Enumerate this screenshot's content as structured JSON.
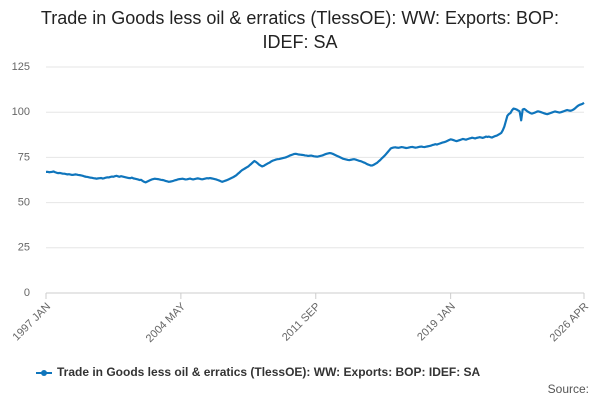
{
  "chart_data": {
    "type": "line",
    "title": "Trade in Goods less oil & erratics (TlessOE): WW: Exports: BOP: IDEF: SA",
    "source": "Source:",
    "categories": [
      "1997 JAN",
      null,
      null,
      null,
      null,
      null,
      null,
      null,
      null,
      null,
      null,
      null,
      null,
      null,
      null,
      null,
      null,
      null,
      null,
      null,
      null,
      null,
      null,
      null,
      null,
      null,
      null,
      null,
      null,
      null,
      null,
      null,
      null,
      null,
      null,
      null,
      null,
      null,
      null,
      null,
      null,
      null,
      null,
      null,
      null,
      null,
      null,
      null,
      null,
      null,
      null,
      null,
      null,
      null,
      null,
      null,
      null,
      null,
      null,
      null,
      null,
      null,
      null,
      null,
      null,
      null,
      null,
      null,
      null,
      null,
      null,
      null,
      null,
      null,
      null,
      null,
      null,
      null,
      null,
      null,
      null,
      null,
      null,
      null,
      null,
      null,
      null,
      null,
      "2004 MAY",
      null,
      null,
      null,
      null,
      null,
      null,
      null,
      null,
      null,
      null,
      null,
      null,
      null,
      null,
      null,
      null,
      null,
      null,
      null,
      null,
      null,
      null,
      null,
      null,
      null,
      null,
      null,
      null,
      null,
      null,
      null,
      null,
      null,
      null,
      null,
      null,
      null,
      null,
      null,
      null,
      null,
      null,
      null,
      null,
      null,
      null,
      null,
      null,
      null,
      null,
      null,
      null,
      null,
      null,
      null,
      null,
      null,
      null,
      null,
      null,
      null,
      null,
      null,
      null,
      null,
      null,
      null,
      null,
      null,
      null,
      null,
      null,
      null,
      null,
      null,
      null,
      null,
      null,
      null,
      null,
      null,
      null,
      null,
      null,
      null,
      null,
      null,
      "2011 SEP",
      null,
      null,
      null,
      null,
      null,
      null,
      null,
      null,
      null,
      null,
      null,
      null,
      null,
      null,
      null,
      null,
      null,
      null,
      null,
      null,
      null,
      null,
      null,
      null,
      null,
      null,
      null,
      null,
      null,
      null,
      null,
      null,
      null,
      null,
      null,
      null,
      null,
      null,
      null,
      null,
      null,
      null,
      null,
      null,
      null,
      null,
      null,
      null,
      null,
      null,
      null,
      null,
      null,
      null,
      null,
      null,
      null,
      null,
      null,
      null,
      null,
      null,
      null,
      null,
      null,
      null,
      null,
      null,
      null,
      null,
      null,
      null,
      null,
      null,
      null,
      null,
      null,
      null,
      null,
      null,
      null,
      null,
      null,
      null,
      null,
      null,
      null,
      "2019 JAN",
      null,
      null,
      null,
      null,
      null,
      null,
      null,
      null,
      null,
      null,
      null,
      null,
      null,
      null,
      null,
      null,
      null,
      null,
      null,
      null,
      null,
      null,
      null,
      null,
      null,
      null,
      null,
      null,
      null,
      null,
      null,
      null,
      null,
      null,
      null,
      null,
      null,
      null,
      null,
      null,
      null,
      null,
      null,
      null,
      null,
      null,
      null,
      null,
      null,
      null,
      null,
      null,
      null,
      null,
      null,
      null,
      null,
      null,
      null,
      null,
      null,
      null,
      null,
      null,
      null,
      null,
      null,
      null,
      null,
      null,
      null,
      null,
      null,
      null,
      null,
      null,
      null,
      null,
      null,
      null,
      null,
      null,
      null,
      null,
      null,
      null,
      "2026 APR"
    ],
    "series": [
      {
        "name": "Trade in Goods less oil & erratics (TlessOE): WW: Exports: BOP: IDEF: SA",
        "color": "#0f75bc",
        "values": [
          67,
          67,
          66.8,
          66.9,
          67,
          67.2,
          66.8,
          66.5,
          66.3,
          66.4,
          66.2,
          66,
          66,
          65.8,
          65.6,
          65.7,
          65.5,
          65.3,
          65.4,
          65.6,
          65.5,
          65.3,
          65.2,
          65,
          64.8,
          64.5,
          64.3,
          64.2,
          64,
          63.8,
          63.7,
          63.5,
          63.4,
          63.2,
          63.4,
          63.5,
          63.6,
          63.3,
          63.5,
          63.8,
          64,
          63.9,
          64.2,
          64.4,
          64.3,
          64.6,
          64.8,
          64.5,
          64.3,
          64.6,
          64.4,
          64.2,
          64,
          63.8,
          63.6,
          63.5,
          63.8,
          63.4,
          63.2,
          63,
          62.8,
          62.5,
          62.6,
          62,
          61.5,
          61.2,
          61.6,
          62,
          62.4,
          62.8,
          63,
          63.2,
          63.1,
          63,
          62.8,
          62.6,
          62.5,
          62.3,
          62,
          61.8,
          61.5,
          61.6,
          61.8,
          62,
          62.3,
          62.5,
          62.8,
          63,
          63.1,
          63.2,
          63,
          62.8,
          62.9,
          63.1,
          63.3,
          63,
          62.8,
          63,
          63.2,
          63.4,
          63.2,
          63,
          62.9,
          63.1,
          63.3,
          63.5,
          63.4,
          63.6,
          63.4,
          63.2,
          63,
          62.8,
          62.5,
          62.2,
          61.8,
          61.5,
          61.8,
          62.1,
          62.4,
          62.8,
          63.2,
          63.6,
          64,
          64.5,
          65,
          65.8,
          66.5,
          67.3,
          68,
          68.5,
          69,
          69.5,
          70,
          70.8,
          71.5,
          72.3,
          73,
          72.5,
          71.8,
          71,
          70.5,
          70,
          70.3,
          70.8,
          71.3,
          71.8,
          72.2,
          72.8,
          73.2,
          73.5,
          73.8,
          74,
          74.1,
          74.3,
          74.5,
          74.7,
          74.9,
          75.2,
          75.6,
          76,
          76.3,
          76.6,
          76.9,
          77,
          76.8,
          76.6,
          76.5,
          76.4,
          76.3,
          76.1,
          76,
          75.8,
          75.9,
          76,
          75.8,
          75.6,
          75.5,
          75.4,
          75.6,
          75.8,
          76,
          76.3,
          76.7,
          77,
          77.2,
          77.4,
          77.3,
          77,
          76.6,
          76.2,
          75.8,
          75.4,
          75,
          74.6,
          74.2,
          74,
          73.8,
          73.6,
          73.5,
          73.7,
          73.9,
          74,
          73.8,
          73.5,
          73.2,
          73,
          72.7,
          72.3,
          72,
          71.5,
          71.1,
          70.8,
          70.5,
          70.6,
          71,
          71.5,
          72,
          72.8,
          73.5,
          74.4,
          75.2,
          76,
          77,
          78,
          79,
          80,
          80.3,
          80.5,
          80.6,
          80.4,
          80.3,
          80.5,
          80.7,
          80.6,
          80.4,
          80.2,
          80.3,
          80.5,
          80.7,
          80.8,
          80.6,
          80.4,
          80.5,
          80.7,
          80.9,
          81,
          80.8,
          80.7,
          80.9,
          81.1,
          81.3,
          81.5,
          81.8,
          82,
          82.3,
          82.1,
          82.4,
          82.7,
          83,
          83.3,
          83.5,
          83.8,
          84.2,
          84.6,
          85,
          84.8,
          84.5,
          84.2,
          84,
          84.3,
          84.6,
          84.9,
          85.2,
          85,
          84.8,
          85.1,
          85.4,
          85.6,
          85.9,
          85.7,
          85.5,
          85.8,
          86,
          86.2,
          86,
          85.8,
          86.1,
          86.5,
          86.3,
          86.5,
          86.2,
          86,
          86.4,
          86.8,
          87,
          87.5,
          88,
          88.5,
          90,
          92,
          95,
          98,
          99,
          99.5,
          101,
          102,
          101.8,
          101.5,
          101,
          100.5,
          95.5,
          101.5,
          101.8,
          101.2,
          100.5,
          100,
          99.5,
          99.2,
          99.5,
          99.8,
          100.2,
          100.5,
          100.3,
          100,
          99.7,
          99.4,
          99.1,
          98.9,
          99.2,
          99.5,
          99.8,
          100.1,
          100.4,
          100.2,
          100,
          99.8,
          100,
          100.3,
          100.6,
          100.9,
          101.2,
          101,
          100.8,
          101,
          101.4,
          102,
          102.8,
          103.5,
          104,
          104.3,
          104.6,
          105.2
        ]
      }
    ],
    "ylim": [
      0,
      125
    ],
    "yticks": [
      0,
      25,
      50,
      75,
      100,
      125
    ],
    "grid": true
  }
}
